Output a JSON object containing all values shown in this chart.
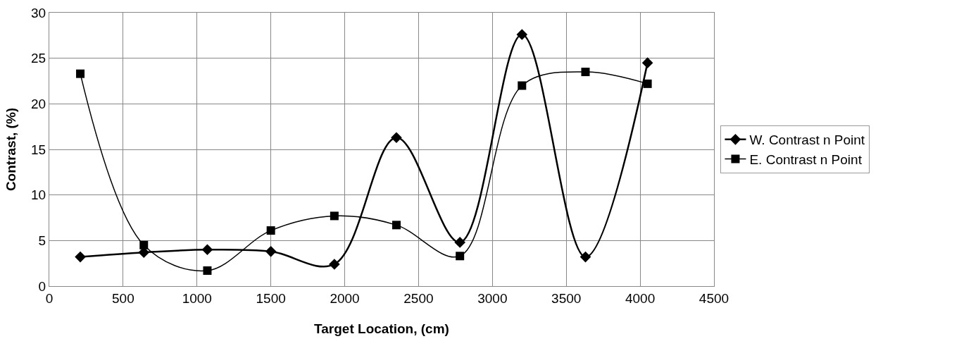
{
  "chart_data": {
    "type": "line",
    "xlabel": "Target Location, (cm)",
    "ylabel": "Contrast, (%)",
    "x": [
      210,
      640,
      1070,
      1500,
      1930,
      2350,
      2780,
      3200,
      3630,
      4050
    ],
    "series": [
      {
        "name": "W. Contrast n Point",
        "color": "#000000",
        "marker": "diamond",
        "values": [
          3.2,
          3.7,
          4.0,
          3.8,
          2.4,
          16.3,
          4.8,
          27.6,
          3.2,
          24.5
        ]
      },
      {
        "name": "E. Contrast n Point",
        "color": "#000000",
        "marker": "square",
        "values": [
          23.3,
          4.5,
          1.7,
          6.1,
          7.7,
          6.7,
          3.3,
          22.0,
          23.5,
          22.2
        ]
      }
    ],
    "xlim": [
      0,
      4500
    ],
    "xticks": [
      0,
      500,
      1000,
      1500,
      2000,
      2500,
      3000,
      3500,
      4000,
      4500
    ],
    "ylim": [
      0,
      30
    ],
    "yticks": [
      0,
      5,
      10,
      15,
      20,
      25,
      30
    ],
    "grid": true,
    "legend": "right",
    "line_style": "solid"
  }
}
